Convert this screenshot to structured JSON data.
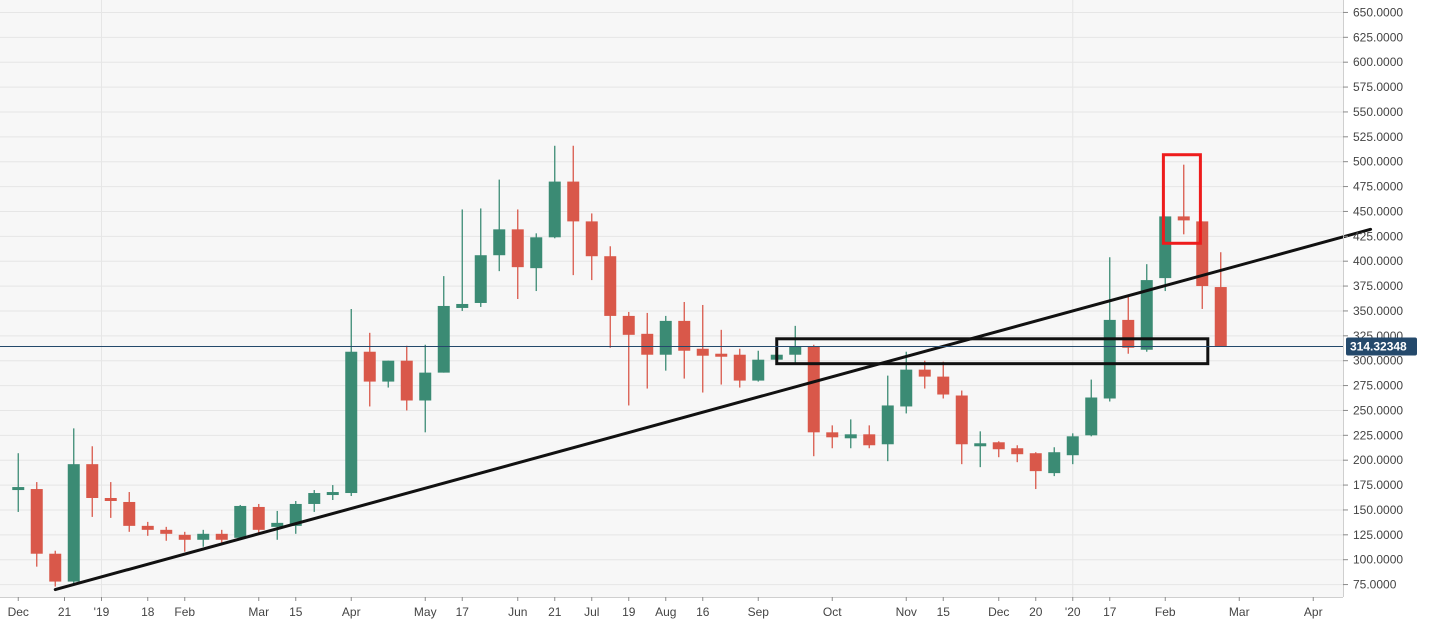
{
  "colors": {
    "bull": "#3b8b74",
    "bear": "#d9584a",
    "grid": "#e6e6e6",
    "plot_bg": "#f7f7f7",
    "price_line": "#24496b",
    "price_tag": "#24496b",
    "trendline": "#111111",
    "zone_box": "#111111",
    "highlight_box": "#ee1c1c",
    "axis_text": "#444444"
  },
  "chart_data": {
    "type": "candlestick",
    "interval": "weekly",
    "y_axis": {
      "min": 62.5,
      "max": 662.5,
      "side": "right",
      "ticks": [
        "75.0000",
        "100.0000",
        "125.0000",
        "150.0000",
        "175.0000",
        "200.0000",
        "225.0000",
        "250.0000",
        "275.0000",
        "300.0000",
        "325.0000",
        "350.0000",
        "375.0000",
        "400.0000",
        "425.0000",
        "450.0000",
        "475.0000",
        "500.0000",
        "525.0000",
        "550.0000",
        "575.0000",
        "600.0000",
        "625.0000",
        "650.0000"
      ]
    },
    "x_axis": {
      "ticks": [
        {
          "label": "Dec",
          "index": 0.5
        },
        {
          "label": "21",
          "index": 3
        },
        {
          "label": "'19",
          "index": 5
        },
        {
          "label": "18",
          "index": 7.5
        },
        {
          "label": "Feb",
          "index": 9.5
        },
        {
          "label": "Mar",
          "index": 13.5
        },
        {
          "label": "15",
          "index": 15.5
        },
        {
          "label": "Apr",
          "index": 18.5
        },
        {
          "label": "May",
          "index": 22.5
        },
        {
          "label": "17",
          "index": 24.5
        },
        {
          "label": "Jun",
          "index": 27.5
        },
        {
          "label": "21",
          "index": 29.5
        },
        {
          "label": "Jul",
          "index": 31.5
        },
        {
          "label": "19",
          "index": 33.5
        },
        {
          "label": "Aug",
          "index": 35.5
        },
        {
          "label": "16",
          "index": 37.5
        },
        {
          "label": "Sep",
          "index": 40.5
        },
        {
          "label": "Oct",
          "index": 44.5
        },
        {
          "label": "Nov",
          "index": 48.5
        },
        {
          "label": "15",
          "index": 50.5
        },
        {
          "label": "Dec",
          "index": 53.5
        },
        {
          "label": "20",
          "index": 55.5
        },
        {
          "label": "'20",
          "index": 57.5
        },
        {
          "label": "17",
          "index": 59.5
        },
        {
          "label": "Feb",
          "index": 62.5
        },
        {
          "label": "Mar",
          "index": 66.5
        },
        {
          "label": "Apr",
          "index": 70.5
        }
      ],
      "vertical_grid": [
        "'19",
        "'20"
      ],
      "slot_count": 73
    },
    "last_price": {
      "value": 314.32,
      "label": "314.32348"
    },
    "candles": [
      {
        "o": 173,
        "h": 207,
        "l": 148,
        "c": 173
      },
      {
        "o": 171,
        "h": 178,
        "l": 93,
        "c": 106
      },
      {
        "o": 106,
        "h": 109,
        "l": 73,
        "c": 78
      },
      {
        "o": 78,
        "h": 232,
        "l": 76,
        "c": 196
      },
      {
        "o": 196,
        "h": 214,
        "l": 143,
        "c": 162
      },
      {
        "o": 162,
        "h": 178,
        "l": 142,
        "c": 159
      },
      {
        "o": 158,
        "h": 168,
        "l": 128,
        "c": 134
      },
      {
        "o": 134,
        "h": 138,
        "l": 124,
        "c": 130
      },
      {
        "o": 130,
        "h": 133,
        "l": 119,
        "c": 126
      },
      {
        "o": 125,
        "h": 128,
        "l": 108,
        "c": 120
      },
      {
        "o": 120,
        "h": 130,
        "l": 113,
        "c": 126
      },
      {
        "o": 126,
        "h": 130,
        "l": 117,
        "c": 120
      },
      {
        "o": 122,
        "h": 155,
        "l": 120,
        "c": 154
      },
      {
        "o": 153,
        "h": 156,
        "l": 126,
        "c": 130
      },
      {
        "o": 133,
        "h": 149,
        "l": 120,
        "c": 137
      },
      {
        "o": 134,
        "h": 159,
        "l": 126,
        "c": 156
      },
      {
        "o": 156,
        "h": 170,
        "l": 148,
        "c": 167
      },
      {
        "o": 167,
        "h": 175,
        "l": 160,
        "c": 168
      },
      {
        "o": 167,
        "h": 352,
        "l": 164,
        "c": 309
      },
      {
        "o": 309,
        "h": 328,
        "l": 254,
        "c": 279
      },
      {
        "o": 279,
        "h": 300,
        "l": 273,
        "c": 300
      },
      {
        "o": 300,
        "h": 315,
        "l": 250,
        "c": 260
      },
      {
        "o": 260,
        "h": 316,
        "l": 228,
        "c": 288
      },
      {
        "o": 288,
        "h": 385,
        "l": 288,
        "c": 355
      },
      {
        "o": 353,
        "h": 452,
        "l": 350,
        "c": 357
      },
      {
        "o": 358,
        "h": 453,
        "l": 354,
        "c": 406
      },
      {
        "o": 406,
        "h": 482,
        "l": 390,
        "c": 432
      },
      {
        "o": 432,
        "h": 452,
        "l": 362,
        "c": 394
      },
      {
        "o": 393,
        "h": 428,
        "l": 370,
        "c": 424
      },
      {
        "o": 424,
        "h": 516,
        "l": 423,
        "c": 480
      },
      {
        "o": 480,
        "h": 516,
        "l": 386,
        "c": 440
      },
      {
        "o": 440,
        "h": 448,
        "l": 381,
        "c": 405
      },
      {
        "o": 405,
        "h": 415,
        "l": 313,
        "c": 345
      },
      {
        "o": 345,
        "h": 349,
        "l": 255,
        "c": 326
      },
      {
        "o": 327,
        "h": 348,
        "l": 272,
        "c": 306
      },
      {
        "o": 306,
        "h": 345,
        "l": 290,
        "c": 340
      },
      {
        "o": 340,
        "h": 359,
        "l": 282,
        "c": 310
      },
      {
        "o": 312,
        "h": 356,
        "l": 268,
        "c": 305
      },
      {
        "o": 307,
        "h": 331,
        "l": 276,
        "c": 306
      },
      {
        "o": 306,
        "h": 312,
        "l": 273,
        "c": 280
      },
      {
        "o": 280,
        "h": 310,
        "l": 279,
        "c": 301
      },
      {
        "o": 301,
        "h": 306,
        "l": 297,
        "c": 306
      },
      {
        "o": 306,
        "h": 335,
        "l": 298,
        "c": 314
      },
      {
        "o": 314,
        "h": 316,
        "l": 204,
        "c": 228
      },
      {
        "o": 228,
        "h": 235,
        "l": 212,
        "c": 223
      },
      {
        "o": 222,
        "h": 241,
        "l": 212,
        "c": 226
      },
      {
        "o": 226,
        "h": 235,
        "l": 212,
        "c": 215
      },
      {
        "o": 216,
        "h": 285,
        "l": 199,
        "c": 255
      },
      {
        "o": 254,
        "h": 309,
        "l": 247,
        "c": 291
      },
      {
        "o": 291,
        "h": 300,
        "l": 272,
        "c": 284
      },
      {
        "o": 284,
        "h": 299,
        "l": 262,
        "c": 266
      },
      {
        "o": 265,
        "h": 270,
        "l": 196,
        "c": 216
      },
      {
        "o": 216,
        "h": 229,
        "l": 193,
        "c": 217
      },
      {
        "o": 218,
        "h": 219,
        "l": 203,
        "c": 211
      },
      {
        "o": 212,
        "h": 215,
        "l": 198,
        "c": 206
      },
      {
        "o": 207,
        "h": 208,
        "l": 171,
        "c": 189
      },
      {
        "o": 187,
        "h": 213,
        "l": 184,
        "c": 208
      },
      {
        "o": 205,
        "h": 227,
        "l": 196,
        "c": 224
      },
      {
        "o": 225,
        "h": 281,
        "l": 224,
        "c": 263
      },
      {
        "o": 262,
        "h": 404,
        "l": 259,
        "c": 341
      },
      {
        "o": 341,
        "h": 366,
        "l": 307,
        "c": 313
      },
      {
        "o": 311,
        "h": 397,
        "l": 309,
        "c": 381
      },
      {
        "o": 383,
        "h": 445,
        "l": 370,
        "c": 445
      },
      {
        "o": 445,
        "h": 497,
        "l": 427,
        "c": 441
      },
      {
        "o": 440,
        "h": 440,
        "l": 352,
        "c": 375
      },
      {
        "o": 374,
        "h": 409,
        "l": 314,
        "c": 314
      }
    ],
    "annotations": {
      "trendlines": [
        {
          "from": {
            "index": 2.5,
            "value": 70
          },
          "to": {
            "index": 73.6,
            "value": 432
          }
        }
      ],
      "zones": [
        {
          "kind": "rect",
          "index_from": 41.5,
          "index_to": 64.8,
          "value_low": 297,
          "value_high": 322
        }
      ],
      "highlights": [
        {
          "kind": "rect",
          "index_from": 62.4,
          "index_to": 64.4,
          "value_low": 418,
          "value_high": 507
        }
      ]
    }
  }
}
